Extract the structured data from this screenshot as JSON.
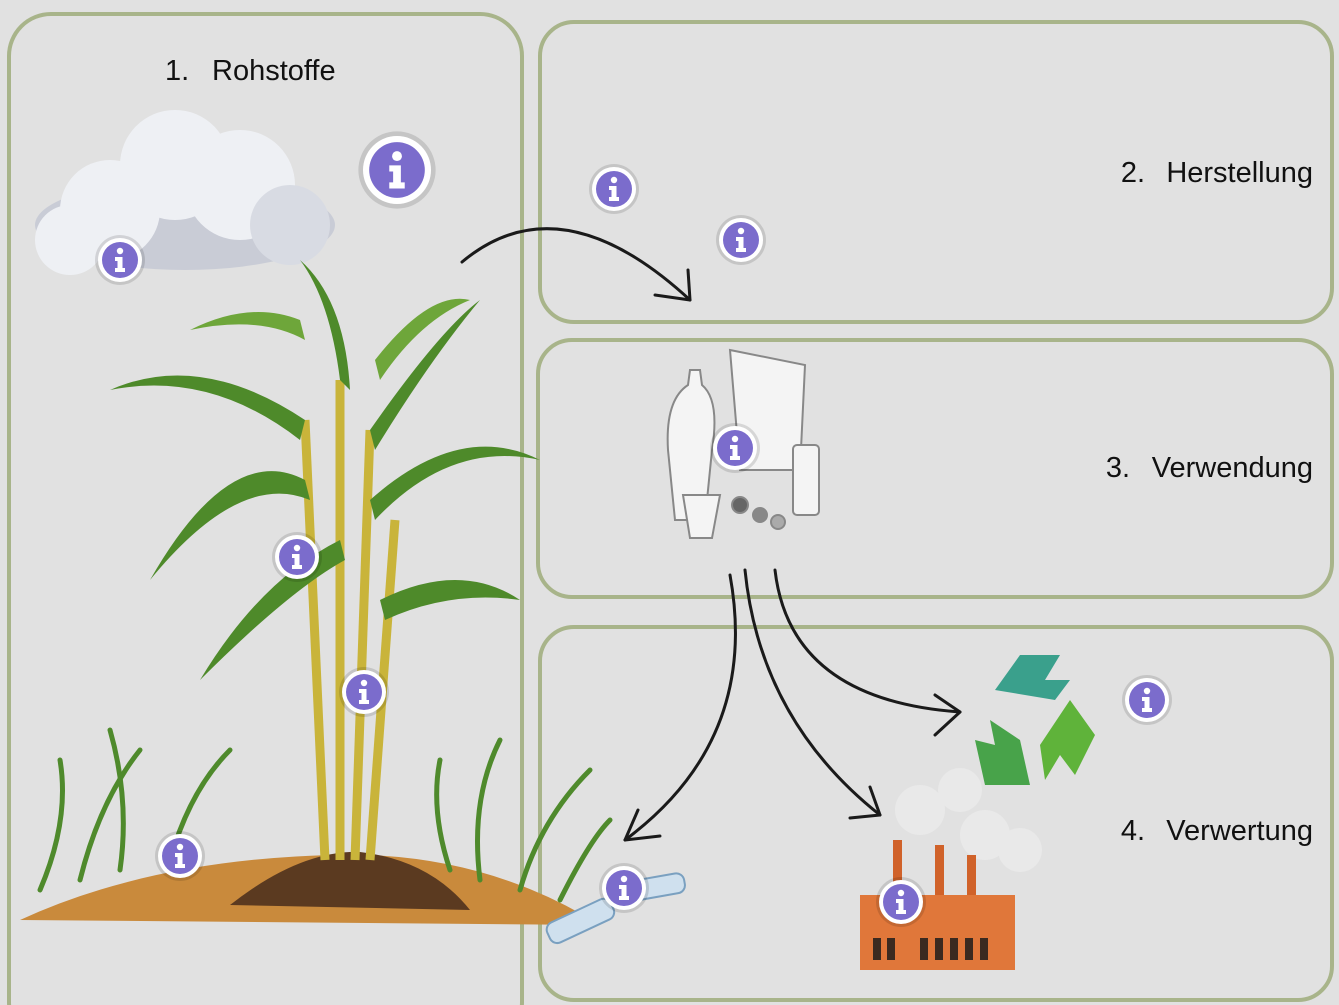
{
  "panels": [
    {
      "number": "1.",
      "title": "Rohstoffe"
    },
    {
      "number": "2.",
      "title": "Herstellung"
    },
    {
      "number": "3.",
      "title": "Verwendung"
    },
    {
      "number": "4.",
      "title": "Verwertung"
    }
  ]
}
